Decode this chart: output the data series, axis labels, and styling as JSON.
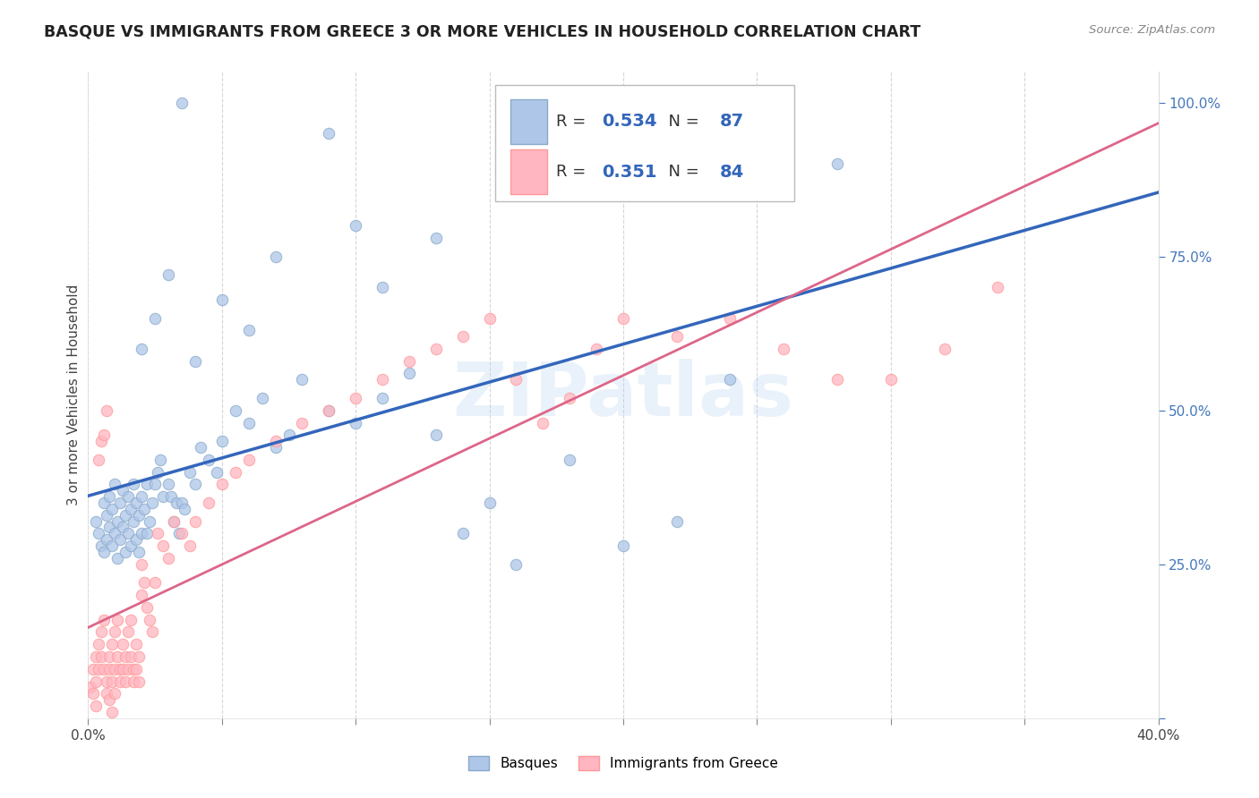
{
  "title": "BASQUE VS IMMIGRANTS FROM GREECE 3 OR MORE VEHICLES IN HOUSEHOLD CORRELATION CHART",
  "source": "Source: ZipAtlas.com",
  "ylabel": "3 or more Vehicles in Household",
  "xmin": 0.0,
  "xmax": 0.4,
  "ymin": 0.0,
  "ymax": 1.05,
  "blue_R": 0.534,
  "blue_N": 87,
  "pink_R": 0.351,
  "pink_N": 84,
  "blue_color": "#89AACC",
  "pink_color": "#FF9999",
  "blue_fill": "#AEC6E8",
  "pink_fill": "#FFB6C1",
  "blue_line_color": "#3366BB",
  "pink_line_color": "#DD6688",
  "watermark": "ZIPatlas",
  "legend_labels": [
    "Basques",
    "Immigrants from Greece"
  ],
  "blue_scatter_x": [
    0.003,
    0.004,
    0.005,
    0.006,
    0.006,
    0.007,
    0.007,
    0.008,
    0.008,
    0.009,
    0.009,
    0.01,
    0.01,
    0.011,
    0.011,
    0.012,
    0.012,
    0.013,
    0.013,
    0.014,
    0.014,
    0.015,
    0.015,
    0.016,
    0.016,
    0.017,
    0.017,
    0.018,
    0.018,
    0.019,
    0.019,
    0.02,
    0.02,
    0.021,
    0.022,
    0.022,
    0.023,
    0.024,
    0.025,
    0.026,
    0.027,
    0.028,
    0.03,
    0.031,
    0.032,
    0.033,
    0.034,
    0.035,
    0.036,
    0.038,
    0.04,
    0.042,
    0.045,
    0.048,
    0.05,
    0.055,
    0.06,
    0.065,
    0.07,
    0.075,
    0.08,
    0.09,
    0.1,
    0.11,
    0.12,
    0.13,
    0.14,
    0.15,
    0.16,
    0.18,
    0.2,
    0.22,
    0.24,
    0.26,
    0.28,
    0.03,
    0.04,
    0.05,
    0.1,
    0.06,
    0.07,
    0.09,
    0.11,
    0.13,
    0.02,
    0.025,
    0.035
  ],
  "blue_scatter_y": [
    0.32,
    0.3,
    0.28,
    0.35,
    0.27,
    0.33,
    0.29,
    0.36,
    0.31,
    0.34,
    0.28,
    0.38,
    0.3,
    0.32,
    0.26,
    0.35,
    0.29,
    0.37,
    0.31,
    0.33,
    0.27,
    0.36,
    0.3,
    0.34,
    0.28,
    0.38,
    0.32,
    0.35,
    0.29,
    0.33,
    0.27,
    0.36,
    0.3,
    0.34,
    0.38,
    0.3,
    0.32,
    0.35,
    0.38,
    0.4,
    0.42,
    0.36,
    0.38,
    0.36,
    0.32,
    0.35,
    0.3,
    0.35,
    0.34,
    0.4,
    0.38,
    0.44,
    0.42,
    0.4,
    0.45,
    0.5,
    0.48,
    0.52,
    0.44,
    0.46,
    0.55,
    0.5,
    0.48,
    0.52,
    0.56,
    0.46,
    0.3,
    0.35,
    0.25,
    0.42,
    0.28,
    0.32,
    0.55,
    0.85,
    0.9,
    0.72,
    0.58,
    0.68,
    0.8,
    0.63,
    0.75,
    0.95,
    0.7,
    0.78,
    0.6,
    0.65,
    1.0
  ],
  "pink_scatter_x": [
    0.001,
    0.002,
    0.002,
    0.003,
    0.003,
    0.004,
    0.004,
    0.005,
    0.005,
    0.006,
    0.006,
    0.007,
    0.007,
    0.008,
    0.008,
    0.009,
    0.009,
    0.01,
    0.01,
    0.011,
    0.011,
    0.012,
    0.012,
    0.013,
    0.013,
    0.014,
    0.014,
    0.015,
    0.015,
    0.016,
    0.016,
    0.017,
    0.017,
    0.018,
    0.018,
    0.019,
    0.019,
    0.02,
    0.02,
    0.021,
    0.022,
    0.023,
    0.024,
    0.025,
    0.026,
    0.028,
    0.03,
    0.032,
    0.035,
    0.038,
    0.04,
    0.045,
    0.05,
    0.055,
    0.06,
    0.07,
    0.08,
    0.09,
    0.1,
    0.11,
    0.12,
    0.13,
    0.14,
    0.15,
    0.16,
    0.17,
    0.18,
    0.19,
    0.2,
    0.22,
    0.24,
    0.26,
    0.28,
    0.3,
    0.32,
    0.34,
    0.004,
    0.005,
    0.006,
    0.007,
    0.003,
    0.008,
    0.009,
    0.01
  ],
  "pink_scatter_y": [
    0.05,
    0.08,
    0.04,
    0.1,
    0.06,
    0.12,
    0.08,
    0.14,
    0.1,
    0.16,
    0.08,
    0.06,
    0.04,
    0.1,
    0.08,
    0.12,
    0.06,
    0.14,
    0.08,
    0.16,
    0.1,
    0.08,
    0.06,
    0.12,
    0.08,
    0.1,
    0.06,
    0.14,
    0.08,
    0.16,
    0.1,
    0.08,
    0.06,
    0.12,
    0.08,
    0.1,
    0.06,
    0.25,
    0.2,
    0.22,
    0.18,
    0.16,
    0.14,
    0.22,
    0.3,
    0.28,
    0.26,
    0.32,
    0.3,
    0.28,
    0.32,
    0.35,
    0.38,
    0.4,
    0.42,
    0.45,
    0.48,
    0.5,
    0.52,
    0.55,
    0.58,
    0.6,
    0.62,
    0.65,
    0.55,
    0.48,
    0.52,
    0.6,
    0.65,
    0.62,
    0.65,
    0.6,
    0.55,
    0.55,
    0.6,
    0.7,
    0.42,
    0.45,
    0.46,
    0.5,
    0.02,
    0.03,
    0.01,
    0.04
  ]
}
